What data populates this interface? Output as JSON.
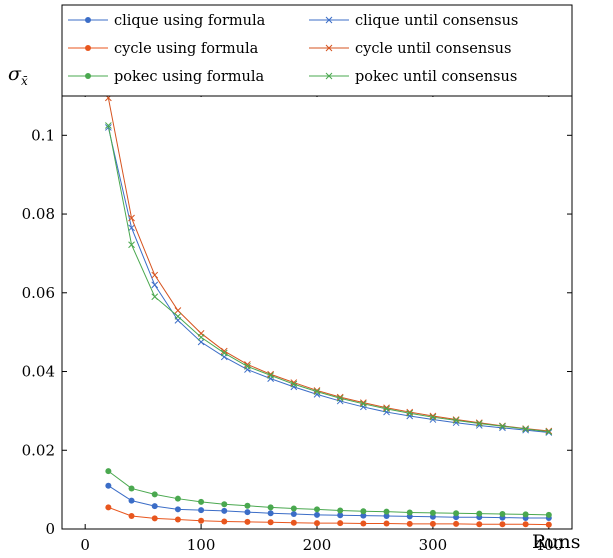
{
  "chart_data": {
    "type": "line",
    "xlabel": "Runs",
    "ylabel": "σx̄",
    "ylabel_main": "σ",
    "ylabel_sub": "x̄",
    "xlim": [
      -20,
      420
    ],
    "ylim": [
      0,
      0.111
    ],
    "x_ticks": [
      0,
      100,
      200,
      300,
      400
    ],
    "x_tick_labels": [
      "0",
      "100",
      "200",
      "300",
      "400"
    ],
    "y_ticks": [
      0,
      0.02,
      0.04,
      0.06,
      0.08,
      0.1
    ],
    "y_tick_labels": [
      "0",
      "0.02",
      "0.04",
      "0.06",
      "0.08",
      "0.1"
    ],
    "grid": false,
    "legend_position": "top",
    "x": [
      20,
      40,
      60,
      80,
      100,
      120,
      140,
      160,
      180,
      200,
      220,
      240,
      260,
      280,
      300,
      320,
      340,
      360,
      380,
      400
    ],
    "series": [
      {
        "name": "clique using formula",
        "color": "#3b6dc7",
        "marker": "dot",
        "values": [
          0.011,
          0.0072,
          0.0058,
          0.005,
          0.0048,
          0.0046,
          0.0043,
          0.004,
          0.0038,
          0.0036,
          0.0035,
          0.0034,
          0.0033,
          0.0032,
          0.0031,
          0.003,
          0.003,
          0.0029,
          0.0028,
          0.0028
        ]
      },
      {
        "name": "clique until consensus",
        "color": "#3b6dc7",
        "marker": "x",
        "values": [
          0.102,
          0.0765,
          0.062,
          0.053,
          0.0475,
          0.0437,
          0.0405,
          0.0382,
          0.0361,
          0.0342,
          0.0325,
          0.031,
          0.0297,
          0.0287,
          0.0278,
          0.027,
          0.0263,
          0.0257,
          0.0251,
          0.0245
        ]
      },
      {
        "name": "cycle using formula",
        "color": "#e8561e",
        "marker": "dot",
        "values": [
          0.0055,
          0.0033,
          0.0027,
          0.0024,
          0.0021,
          0.0019,
          0.0018,
          0.0017,
          0.0016,
          0.0015,
          0.0015,
          0.0014,
          0.0014,
          0.0013,
          0.0013,
          0.0013,
          0.0012,
          0.0012,
          0.0012,
          0.0011
        ]
      },
      {
        "name": "cycle until consensus",
        "color": "#d6531f",
        "marker": "x",
        "values": [
          0.1095,
          0.079,
          0.0645,
          0.0555,
          0.0497,
          0.0452,
          0.0418,
          0.0393,
          0.0372,
          0.0352,
          0.0335,
          0.0321,
          0.0308,
          0.0297,
          0.0287,
          0.0278,
          0.027,
          0.0262,
          0.0255,
          0.0249
        ]
      },
      {
        "name": "pokec using formula",
        "color": "#4aa84f",
        "marker": "dot",
        "values": [
          0.0147,
          0.0103,
          0.0088,
          0.0077,
          0.0069,
          0.0063,
          0.0059,
          0.0055,
          0.0052,
          0.005,
          0.0047,
          0.0045,
          0.0044,
          0.0042,
          0.0041,
          0.004,
          0.0039,
          0.0038,
          0.0037,
          0.0036
        ]
      },
      {
        "name": "pokec until consensus",
        "color": "#4aa84f",
        "marker": "x",
        "values": [
          0.1025,
          0.0722,
          0.059,
          0.054,
          0.0487,
          0.0447,
          0.0413,
          0.039,
          0.0368,
          0.0349,
          0.0332,
          0.0318,
          0.0305,
          0.0294,
          0.0284,
          0.0276,
          0.0268,
          0.0261,
          0.0254,
          0.0247
        ]
      }
    ],
    "legend_order": [
      0,
      1,
      2,
      3,
      4,
      5
    ]
  }
}
